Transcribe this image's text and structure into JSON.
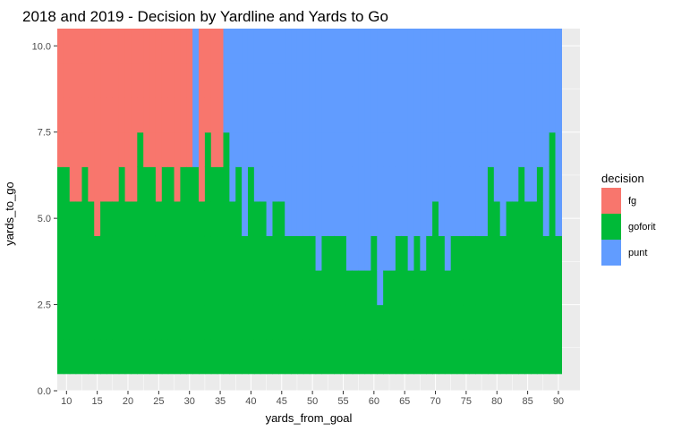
{
  "chart_data": {
    "type": "heatmap",
    "title": "2018 and 2019 - Decision by Yardline and Yards to Go",
    "xlabel": "yards_from_goal",
    "ylabel": "yards_to_go",
    "xlim": [
      8.5,
      93.5
    ],
    "ylim": [
      0,
      10.5
    ],
    "x_tick_values": [
      10,
      15,
      20,
      25,
      30,
      35,
      40,
      45,
      50,
      55,
      60,
      65,
      70,
      75,
      80,
      85,
      90
    ],
    "x_tick_labels": [
      "10",
      "15",
      "20",
      "25",
      "30",
      "35",
      "40",
      "45",
      "50",
      "55",
      "60",
      "65",
      "70",
      "75",
      "80",
      "85",
      "90"
    ],
    "y_tick_values": [
      0,
      2.5,
      5,
      7.5,
      10
    ],
    "y_tick_labels": [
      "0.0",
      "2.5",
      "5.0",
      "7.5",
      "10.0"
    ],
    "grid": true,
    "legend_position": "right",
    "legend_title": "decision",
    "legend": [
      {
        "key": "fg",
        "label": "fg",
        "color": "#F8766D"
      },
      {
        "key": "goforit",
        "label": "goforit",
        "color": "#00BA38"
      },
      {
        "key": "punt",
        "label": "punt",
        "color": "#619CFF"
      }
    ],
    "yards_from_goal": [
      9,
      10,
      11,
      12,
      13,
      14,
      15,
      16,
      17,
      18,
      19,
      20,
      21,
      22,
      23,
      24,
      25,
      26,
      27,
      28,
      29,
      30,
      31,
      32,
      33,
      34,
      35,
      36,
      37,
      38,
      39,
      40,
      41,
      42,
      43,
      44,
      45,
      46,
      47,
      48,
      49,
      50,
      51,
      52,
      53,
      54,
      55,
      56,
      57,
      58,
      59,
      60,
      61,
      62,
      63,
      64,
      65,
      66,
      67,
      68,
      69,
      70,
      71,
      72,
      73,
      74,
      75,
      76,
      77,
      78,
      79,
      80,
      81,
      82,
      83,
      84,
      85,
      86,
      87,
      88,
      89,
      90
    ],
    "goforit_max_yards_to_go": [
      6,
      6,
      5,
      5,
      6,
      5,
      4,
      5,
      5,
      5,
      6,
      5,
      5,
      7,
      6,
      6,
      5,
      6,
      6,
      5,
      6,
      6,
      6,
      5,
      7,
      6,
      6,
      7,
      5,
      6,
      4,
      6,
      5,
      5,
      4,
      5,
      5,
      4,
      4,
      4,
      4,
      4,
      3,
      4,
      4,
      4,
      4,
      3,
      3,
      3,
      3,
      4,
      2,
      3,
      3,
      4,
      4,
      3,
      4,
      3,
      4,
      5,
      4,
      3,
      4,
      4,
      4,
      4,
      4,
      4,
      6,
      5,
      4,
      5,
      5,
      6,
      5,
      5,
      6,
      4,
      7,
      4
    ],
    "fg_max_yards_to_go": [
      10,
      10,
      10,
      10,
      10,
      10,
      10,
      10,
      10,
      10,
      10,
      10,
      10,
      10,
      10,
      10,
      10,
      10,
      10,
      10,
      10,
      10,
      0,
      10,
      10,
      10,
      10,
      0,
      0,
      0,
      0,
      0,
      0,
      0,
      0,
      0,
      0,
      0,
      0,
      0,
      0,
      0,
      0,
      0,
      0,
      0,
      0,
      0,
      0,
      0,
      0,
      0,
      0,
      0,
      0,
      0,
      0,
      0,
      0,
      0,
      0,
      0,
      0,
      0,
      0,
      0,
      0,
      0,
      0,
      0,
      0,
      0,
      0,
      0,
      0,
      0,
      0,
      0,
      0,
      0,
      0,
      0
    ],
    "y_levels": [
      1,
      10
    ],
    "fill_colors": {
      "fg": "#F8766D",
      "goforit": "#00BA38",
      "punt": "#619CFF"
    }
  }
}
